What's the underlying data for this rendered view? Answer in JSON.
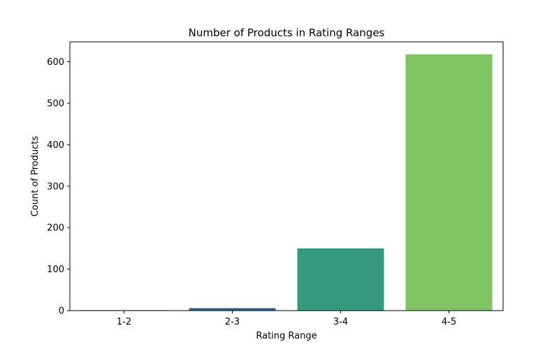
{
  "chart_data": {
    "type": "bar",
    "title": "Number of Products in Rating Ranges",
    "xlabel": "Rating Range",
    "ylabel": "Count of Products",
    "categories": [
      "1-2",
      "2-3",
      "3-4",
      "4-5"
    ],
    "values": [
      1,
      6,
      150,
      618
    ],
    "colors": [
      "#45337d",
      "#33638d",
      "#35997d",
      "#80c463"
    ],
    "ylim": [
      0,
      648
    ],
    "yticks": [
      0,
      100,
      200,
      300,
      400,
      500,
      600
    ],
    "grid": false,
    "legend": "none"
  }
}
